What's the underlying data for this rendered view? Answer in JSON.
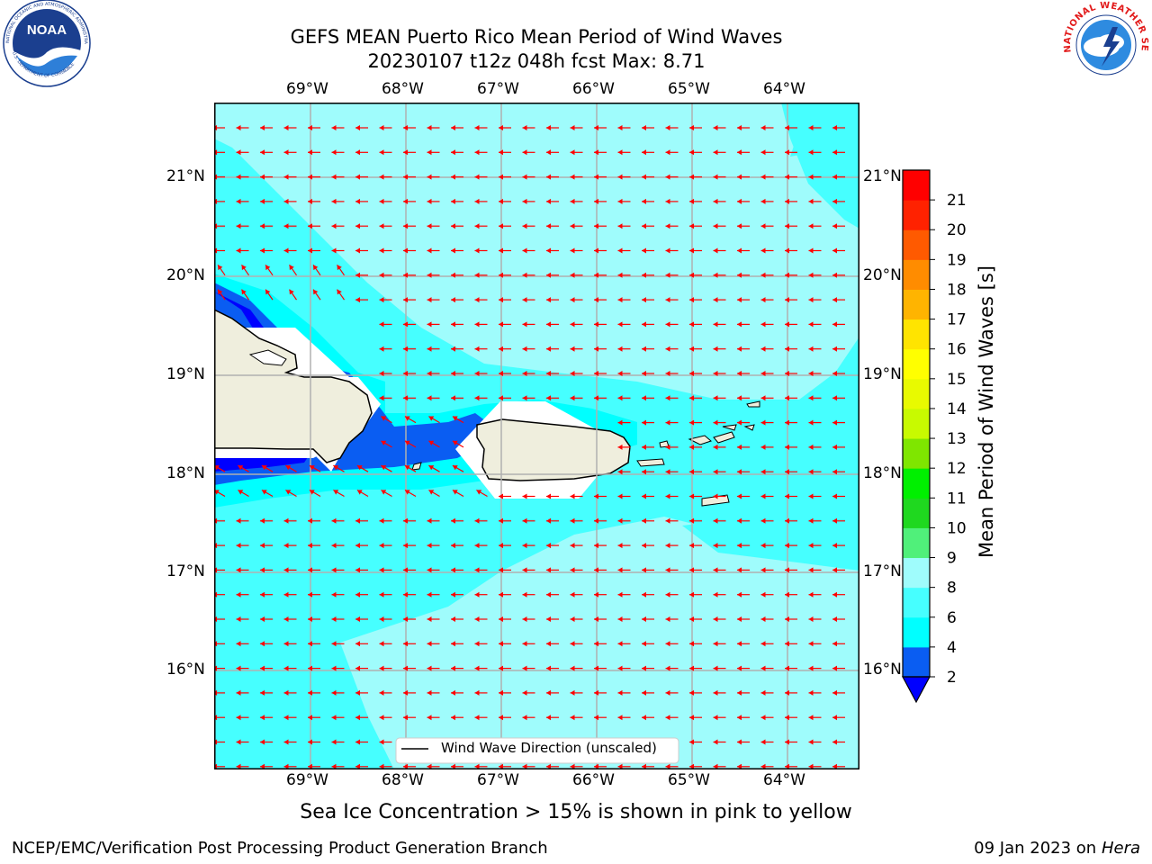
{
  "header": {
    "title_line1": "GEFS MEAN Puerto Rico Mean Period of Wind Waves",
    "title_line2": "20230107 t12z 048h fcst   Max: 8.71"
  },
  "logos": {
    "noara_text": "NOAA",
    "noaa_ring_text": "NATIONAL OCEANIC AND ATMOSPHERIC ADMINISTRATION",
    "noaa_ring_bottom": "U.S. DEPARTMENT OF COMMERCE",
    "nws_ring_text": "NATIONAL WEATHER SERVICE"
  },
  "map": {
    "lon_ticks": [
      "69°W",
      "68°W",
      "67°W",
      "66°W",
      "65°W",
      "64°W"
    ],
    "lat_ticks": [
      "21°N",
      "20°N",
      "19°N",
      "18°N",
      "17°N",
      "16°N"
    ],
    "legend_label": "Wind Wave Direction (unscaled)",
    "arrow_color": "#ff0000"
  },
  "colorbar": {
    "label": "Mean Period of Wind Waves [s]",
    "ticks": [
      "2",
      "4",
      "6",
      "8",
      "9",
      "10",
      "11",
      "12",
      "13",
      "14",
      "15",
      "16",
      "17",
      "18",
      "19",
      "20",
      "21"
    ],
    "colors": [
      "#0a5df2",
      "#00ffff",
      "#46ffff",
      "#9ffcfc",
      "#50f07a",
      "#1fd81f",
      "#00f000",
      "#7fe600",
      "#c8fa00",
      "#e8fa00",
      "#ffff00",
      "#ffe400",
      "#ffb400",
      "#ff8c00",
      "#ff5a00",
      "#ff2200",
      "#ff0000"
    ],
    "under_color": "#0000ff"
  },
  "caption": "Sea Ice Concentration > 15% is shown in pink to yellow",
  "footer": {
    "left": "NCEP/EMC/Verification Post Processing Product Generation Branch",
    "right_prefix": "09 Jan 2023 on ",
    "right_machine": "Hera"
  }
}
